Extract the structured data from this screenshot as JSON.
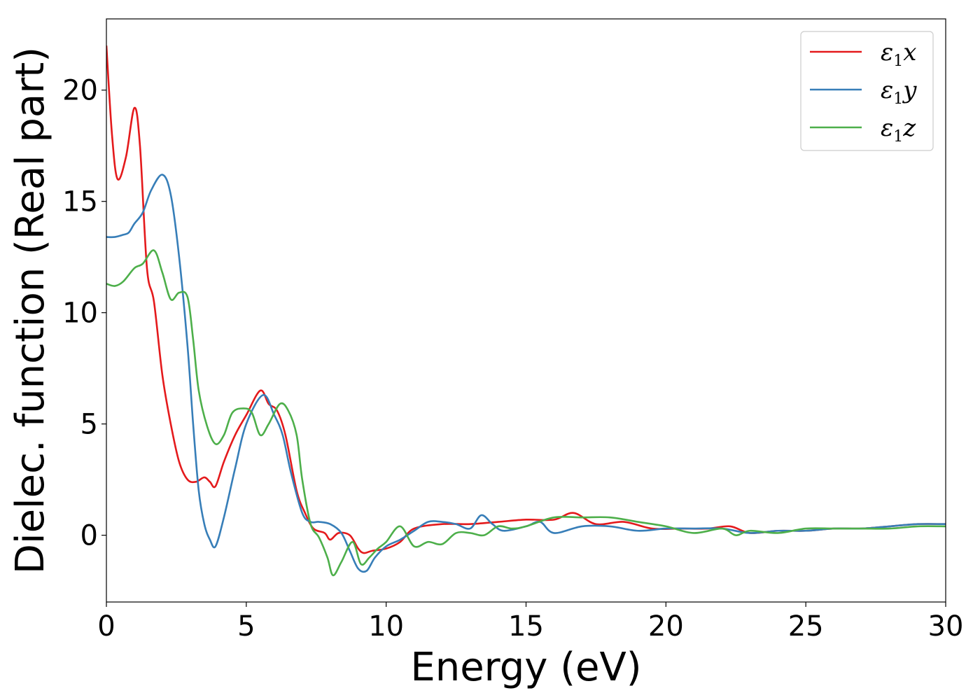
{
  "chart_data": {
    "type": "line",
    "xlabel": "Energy (eV)",
    "ylabel": "Dielec. function (Real part)",
    "xlim": [
      0,
      30
    ],
    "ylim": [
      -3,
      23.2
    ],
    "xticks": [
      0,
      5,
      10,
      15,
      20,
      25,
      30
    ],
    "yticks": [
      0,
      5,
      10,
      15,
      20
    ],
    "grid": false,
    "legend_position": "top-right",
    "series": [
      {
        "name": "ε1x",
        "color": "#e41a1c",
        "x": [
          0,
          0.2,
          0.4,
          0.7,
          1.0,
          1.2,
          1.45,
          1.7,
          2.0,
          2.3,
          2.6,
          2.9,
          3.2,
          3.5,
          3.7,
          3.9,
          4.2,
          4.6,
          5.0,
          5.5,
          5.8,
          6.1,
          6.4,
          6.8,
          7.1,
          7.4,
          7.8,
          8.0,
          8.3,
          8.7,
          9.0,
          9.2,
          9.5,
          10.0,
          10.5,
          11.0,
          12.0,
          13.0,
          14.0,
          15.0,
          16.0,
          16.7,
          17.5,
          18.5,
          19.5,
          20.5,
          21.5,
          22.3,
          23.0,
          24.0,
          25.0,
          26.0,
          27.0,
          28.0,
          29.0,
          30.0
        ],
        "y": [
          22.0,
          18.0,
          16.0,
          17.0,
          19.2,
          17.5,
          12.0,
          10.5,
          7.2,
          5.0,
          3.3,
          2.5,
          2.4,
          2.6,
          2.4,
          2.2,
          3.3,
          4.5,
          5.4,
          6.5,
          5.9,
          5.6,
          4.5,
          2.0,
          1.0,
          0.3,
          0.1,
          -0.2,
          0.1,
          0.0,
          -0.6,
          -0.8,
          -0.7,
          -0.6,
          -0.3,
          0.3,
          0.5,
          0.5,
          0.6,
          0.7,
          0.7,
          1.0,
          0.5,
          0.6,
          0.3,
          0.3,
          0.3,
          0.4,
          0.1,
          0.2,
          0.2,
          0.3,
          0.3,
          0.4,
          0.5,
          0.5
        ]
      },
      {
        "name": "ε1y",
        "color": "#377eb8",
        "x": [
          0,
          0.3,
          0.6,
          0.8,
          1.0,
          1.3,
          1.6,
          2.0,
          2.3,
          2.6,
          2.9,
          3.1,
          3.3,
          3.5,
          3.7,
          3.9,
          4.2,
          4.6,
          5.0,
          5.6,
          6.0,
          6.3,
          6.6,
          7.0,
          7.3,
          7.6,
          8.0,
          8.4,
          8.7,
          9.0,
          9.3,
          9.6,
          10.0,
          10.5,
          11.0,
          11.5,
          12.0,
          12.5,
          13.0,
          13.4,
          13.8,
          14.2,
          15.0,
          15.5,
          16.0,
          17.0,
          18.0,
          19.0,
          20.0,
          21.0,
          22.0,
          23.0,
          24.0,
          25.0,
          26.0,
          27.0,
          28.0,
          29.0,
          30.0
        ],
        "y": [
          13.4,
          13.4,
          13.5,
          13.6,
          14.0,
          14.5,
          15.5,
          16.2,
          15.3,
          12.5,
          8.5,
          5.0,
          2.0,
          0.5,
          -0.2,
          -0.5,
          0.8,
          3.0,
          5.0,
          6.3,
          5.4,
          4.5,
          2.8,
          1.0,
          0.6,
          0.6,
          0.5,
          0.1,
          -0.7,
          -1.5,
          -1.6,
          -1.0,
          -0.5,
          -0.2,
          0.2,
          0.6,
          0.6,
          0.5,
          0.3,
          0.9,
          0.5,
          0.2,
          0.4,
          0.6,
          0.1,
          0.4,
          0.4,
          0.2,
          0.3,
          0.3,
          0.3,
          0.1,
          0.2,
          0.2,
          0.3,
          0.3,
          0.4,
          0.5,
          0.5
        ]
      },
      {
        "name": "ε1z",
        "color": "#4daf4a",
        "x": [
          0,
          0.3,
          0.6,
          1.0,
          1.3,
          1.7,
          2.0,
          2.3,
          2.6,
          2.9,
          3.1,
          3.3,
          3.6,
          3.9,
          4.2,
          4.5,
          4.9,
          5.2,
          5.5,
          5.8,
          6.2,
          6.5,
          6.8,
          7.0,
          7.3,
          7.6,
          7.9,
          8.1,
          8.4,
          8.8,
          9.1,
          9.4,
          9.7,
          10.0,
          10.5,
          11.0,
          11.5,
          12.0,
          12.5,
          13.0,
          13.5,
          14.0,
          14.5,
          15.0,
          16.0,
          17.0,
          18.0,
          19.0,
          20.0,
          21.0,
          22.0,
          22.5,
          23.0,
          24.0,
          25.0,
          26.0,
          27.0,
          28.0,
          29.0,
          30.0
        ],
        "y": [
          11.3,
          11.2,
          11.4,
          12.0,
          12.2,
          12.8,
          11.8,
          10.6,
          10.9,
          10.7,
          8.8,
          6.5,
          4.9,
          4.1,
          4.5,
          5.5,
          5.7,
          5.5,
          4.5,
          5.0,
          5.9,
          5.6,
          4.5,
          2.5,
          0.5,
          -0.1,
          -1.0,
          -1.8,
          -1.2,
          -0.3,
          -1.3,
          -1.0,
          -0.6,
          -0.3,
          0.4,
          -0.5,
          -0.3,
          -0.4,
          0.1,
          0.1,
          0.0,
          0.4,
          0.3,
          0.4,
          0.8,
          0.8,
          0.8,
          0.6,
          0.4,
          0.1,
          0.3,
          0.0,
          0.2,
          0.1,
          0.3,
          0.3,
          0.3,
          0.3,
          0.4,
          0.4
        ]
      }
    ]
  }
}
